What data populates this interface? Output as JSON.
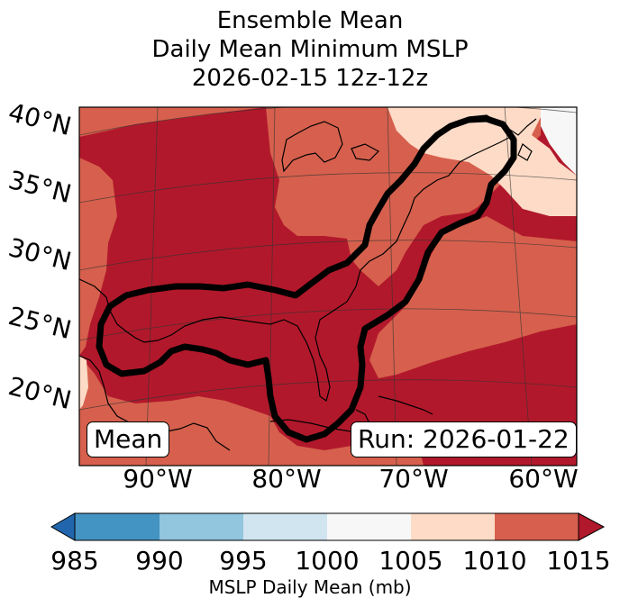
{
  "title": {
    "line1": "Ensemble Mean",
    "line2": "Daily Mean Minimum MSLP",
    "line3": "2026-02-15 12z-12z"
  },
  "map": {
    "lat_labels": [
      "40°N",
      "35°N",
      "30°N",
      "25°N",
      "20°N"
    ],
    "lon_labels": [
      "90°W",
      "80°W",
      "70°W",
      "60°W"
    ],
    "mean_box": "Mean",
    "run_box": "Run: 2026-01-22",
    "fill_colors": {
      "ge1010": "#b2182b",
      "1005_1010": "#d6604d",
      "1000_1005": "#fddbc7",
      "995_1000": "#f7f7f7"
    }
  },
  "colorbar": {
    "ticks": [
      "985",
      "990",
      "995",
      "1000",
      "1005",
      "1010",
      "1015"
    ],
    "label": "MSLP Daily Mean (mb)",
    "colors": [
      "#2166ac",
      "#4393c3",
      "#92c5de",
      "#d1e5f0",
      "#f7f7f7",
      "#fddbc7",
      "#d6604d",
      "#b2182b"
    ]
  }
}
